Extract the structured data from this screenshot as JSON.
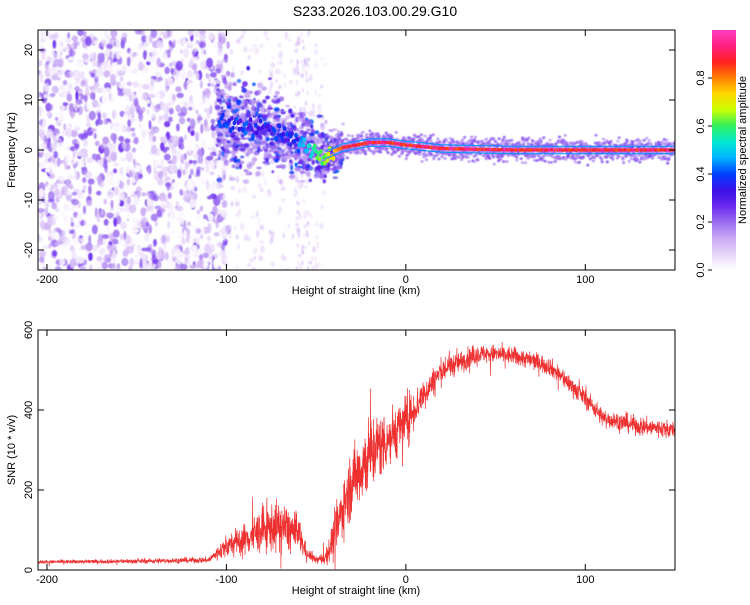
{
  "figure_title": "S233.2026.103.00.29.G10",
  "colors": {
    "snr_line": "#ee3030",
    "frame": "#000000",
    "spectrum_stops": [
      "#ffffff",
      "#e6d4fa",
      "#c9a8f3",
      "#9a6cf0",
      "#6a28f0",
      "#3a10e8",
      "#0040ff",
      "#00b4ff",
      "#00e8d0",
      "#30f060",
      "#c8ff00",
      "#ffd800",
      "#ff8000",
      "#ff2020",
      "#ff2080",
      "#ff40c0"
    ]
  },
  "chart_data": [
    {
      "type": "heatmap",
      "name": "spectrogram",
      "title": "",
      "xlabel": "Height of straight line (km)",
      "ylabel": "Frequency (Hz)",
      "xlim": [
        -205,
        150
      ],
      "ylim": [
        -24,
        24
      ],
      "x_ticks": [
        -200,
        -100,
        0,
        100
      ],
      "y_ticks": [
        20,
        10,
        0,
        -10,
        -20
      ],
      "colorbar": {
        "label": "Normalized spectral amplitude",
        "range": [
          0.0,
          1.0
        ],
        "ticks": [
          0.0,
          0.2,
          0.4,
          0.6,
          0.8
        ]
      },
      "ridge": {
        "description_points": [
          {
            "x": -105,
            "y": 5.5
          },
          {
            "x": -80,
            "y": 4.5
          },
          {
            "x": -65,
            "y": 2.5
          },
          {
            "x": -55,
            "y": 0.5
          },
          {
            "x": -45,
            "y": -1.0
          },
          {
            "x": -35,
            "y": 0.5
          },
          {
            "x": -20,
            "y": 1.5
          },
          {
            "x": -10,
            "y": 1.5
          },
          {
            "x": 0,
            "y": 1.0
          },
          {
            "x": 20,
            "y": 0.3
          },
          {
            "x": 60,
            "y": 0.0
          },
          {
            "x": 150,
            "y": 0.0
          }
        ],
        "peak_amplitude_from_x": -35
      },
      "noise_region_x": [
        -205,
        -105
      ]
    },
    {
      "type": "line",
      "name": "snr",
      "title": "",
      "xlabel": "Height of straight line (km)",
      "ylabel": "SNR (10 * v/v)",
      "xlim": [
        -205,
        150
      ],
      "ylim": [
        0,
        600
      ],
      "x_ticks": [
        -200,
        -100,
        0,
        100
      ],
      "y_ticks": [
        0,
        200,
        400,
        600
      ],
      "series": [
        {
          "name": "SNR",
          "envelope_x": [
            -205,
            -150,
            -110,
            -100,
            -90,
            -80,
            -70,
            -60,
            -55,
            -50,
            -45,
            -40,
            -35,
            -30,
            -20,
            -10,
            0,
            10,
            20,
            30,
            40,
            50,
            60,
            70,
            80,
            90,
            100,
            110,
            120,
            130,
            140,
            150
          ],
          "envelope_y": [
            20,
            22,
            25,
            60,
            75,
            100,
            110,
            90,
            40,
            25,
            30,
            80,
            160,
            220,
            290,
            330,
            370,
            440,
            500,
            520,
            540,
            540,
            535,
            525,
            510,
            470,
            430,
            380,
            370,
            360,
            355,
            350
          ],
          "noise_amplitude": [
            5,
            6,
            8,
            30,
            45,
            60,
            70,
            55,
            15,
            10,
            20,
            60,
            80,
            90,
            110,
            80,
            70,
            40,
            35,
            30,
            25,
            25,
            25,
            25,
            25,
            25,
            25,
            25,
            25,
            25,
            25,
            25
          ]
        }
      ]
    }
  ]
}
